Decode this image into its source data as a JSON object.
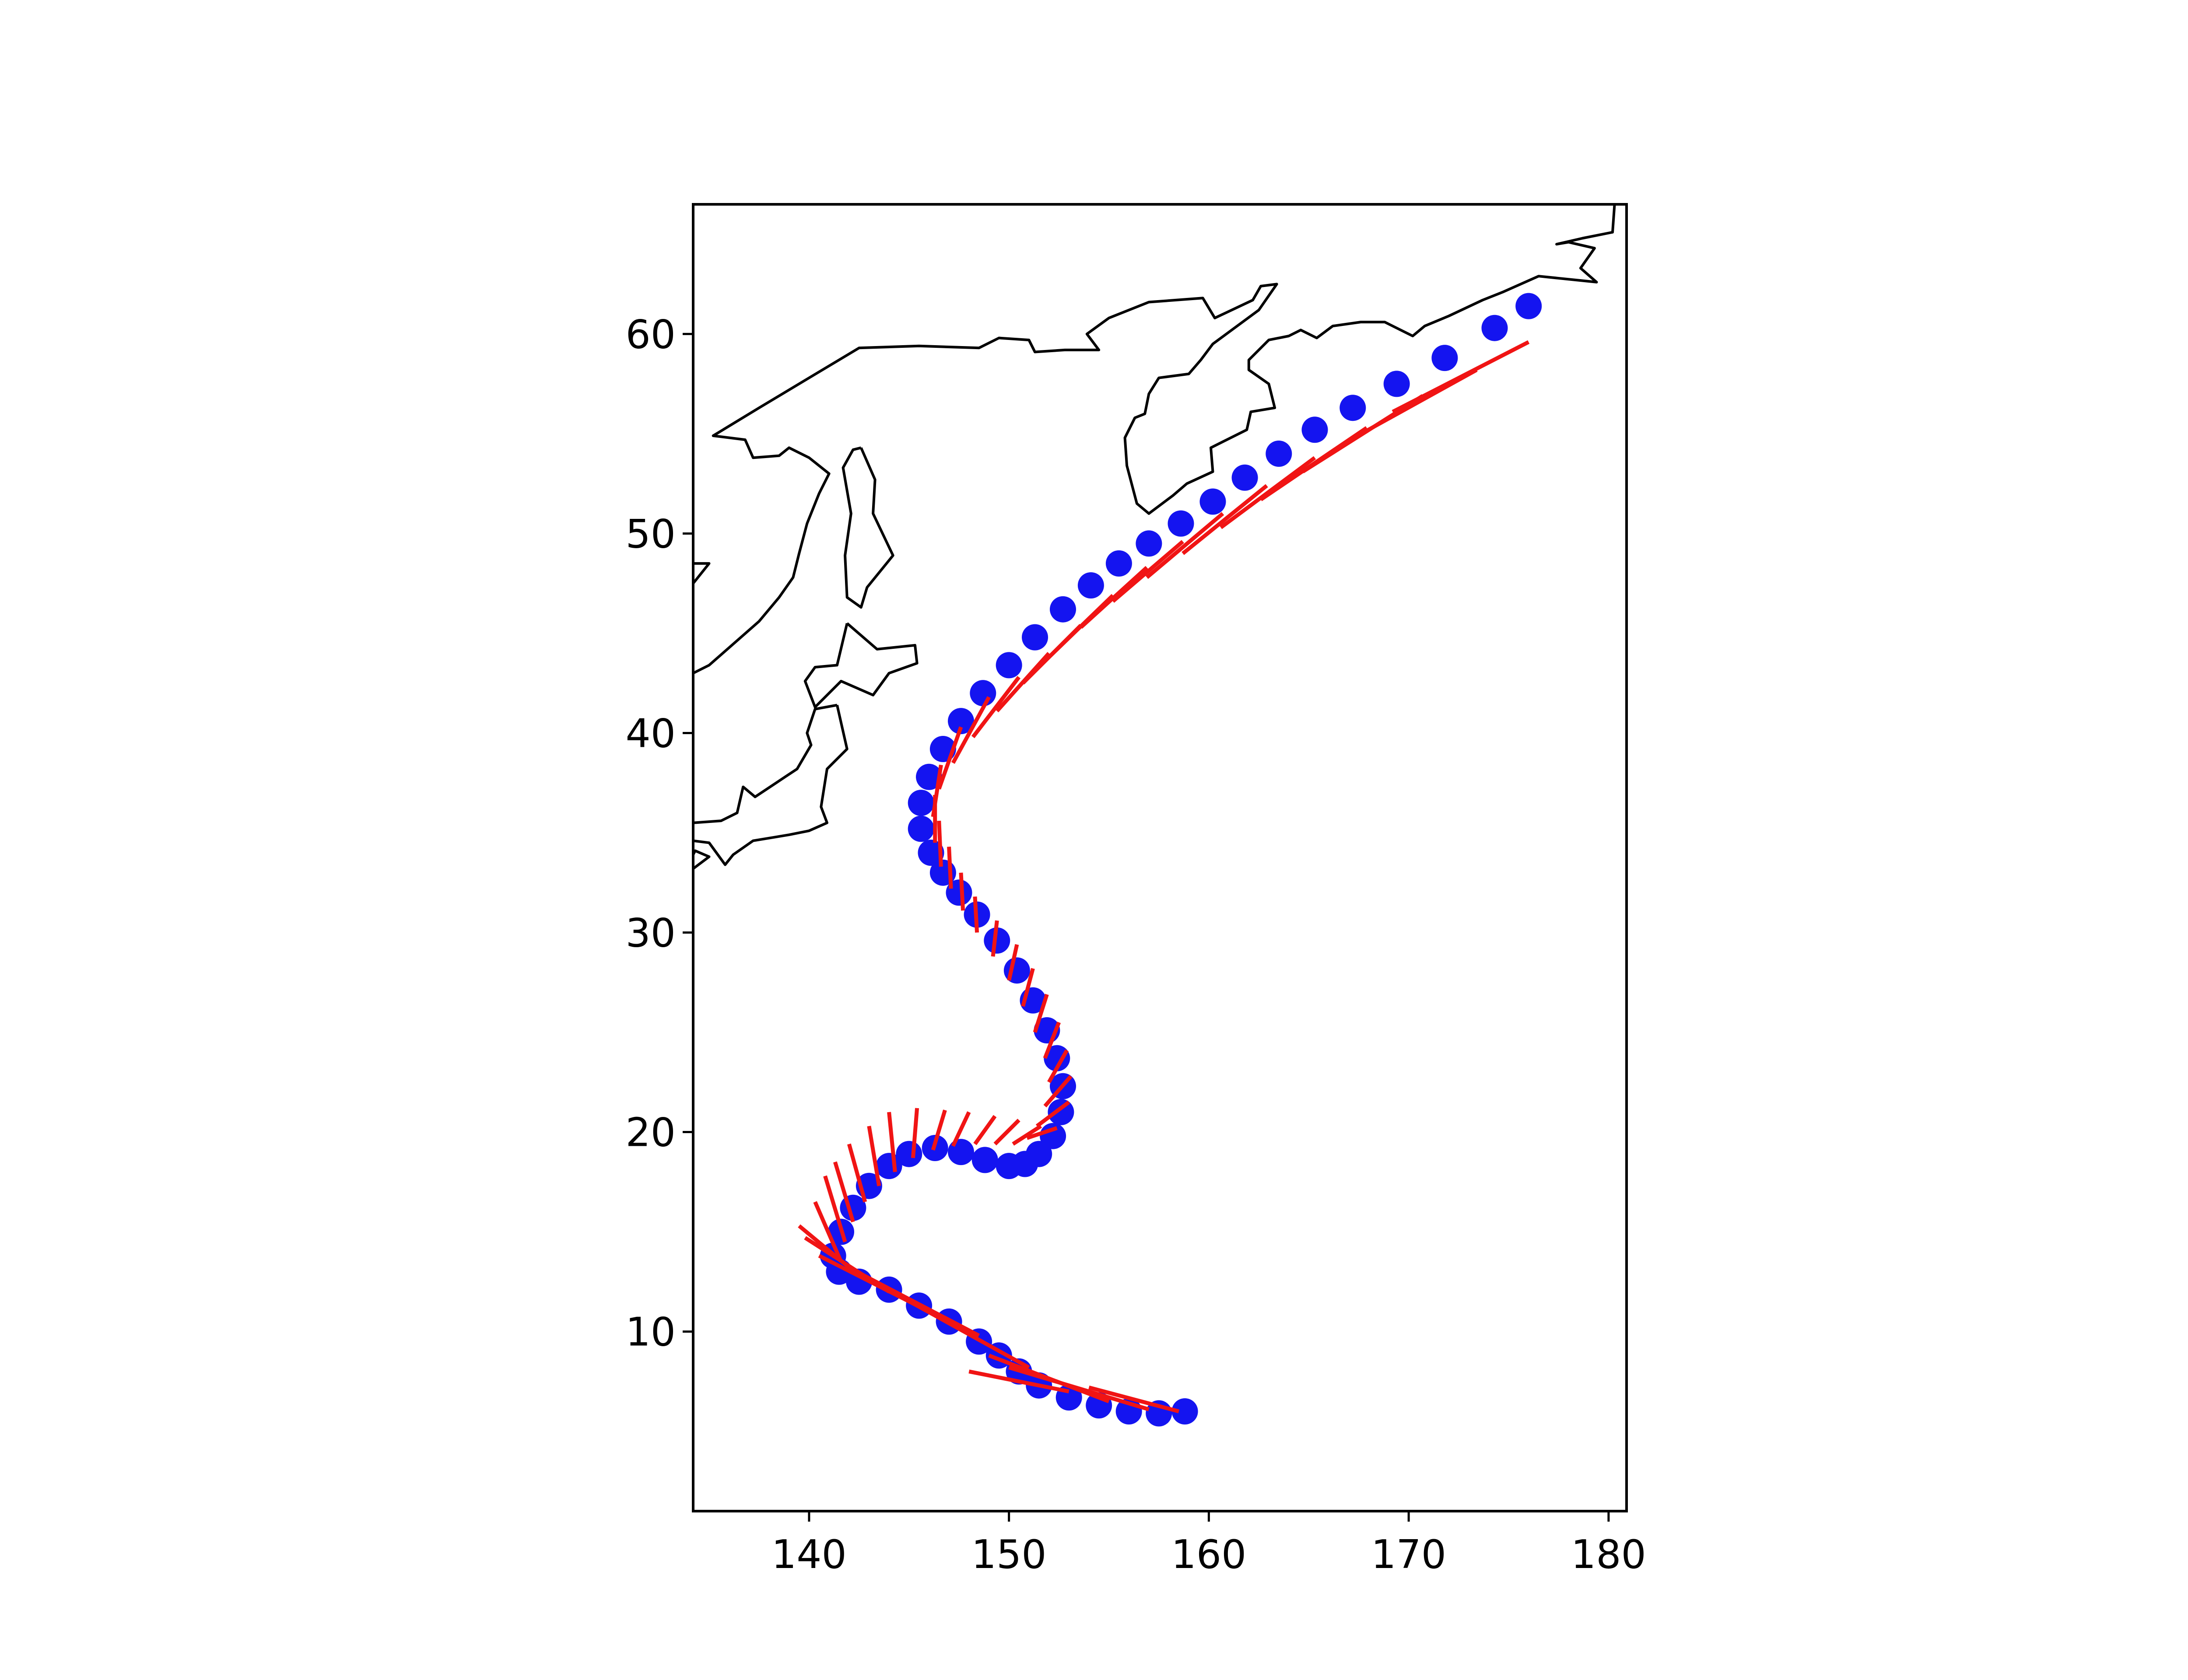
{
  "chart_data": {
    "type": "scatter",
    "title": "",
    "xlabel": "",
    "ylabel": "",
    "xlim": [
      134.2,
      180.9
    ],
    "ylim": [
      1.0,
      66.5
    ],
    "xticks": [
      140,
      150,
      160,
      170,
      180
    ],
    "yticks": [
      10,
      20,
      30,
      40,
      50,
      60
    ],
    "xtick_labels": [
      "140",
      "150",
      "160",
      "170",
      "180"
    ],
    "ytick_labels": [
      "10",
      "20",
      "30",
      "40",
      "50",
      "60"
    ],
    "grid": false,
    "legend": "none",
    "colors": {
      "track": "#1414f0",
      "vectors": "#f01414",
      "coastline": "#000000"
    },
    "series": [
      {
        "kind": "track-points",
        "color": "#1414f0",
        "points": [
          [
            158.8,
            6.0
          ],
          [
            157.5,
            5.9
          ],
          [
            156.0,
            6.0
          ],
          [
            154.5,
            6.3
          ],
          [
            153.0,
            6.7
          ],
          [
            151.5,
            7.3
          ],
          [
            150.5,
            8.0
          ],
          [
            149.5,
            8.8
          ],
          [
            148.5,
            9.5
          ],
          [
            147.0,
            10.5
          ],
          [
            145.5,
            11.3
          ],
          [
            144.0,
            12.1
          ],
          [
            142.5,
            12.5
          ],
          [
            141.5,
            13.0
          ],
          [
            141.2,
            13.8
          ],
          [
            141.6,
            15.0
          ],
          [
            142.2,
            16.2
          ],
          [
            143.0,
            17.3
          ],
          [
            144.0,
            18.3
          ],
          [
            145.0,
            18.9
          ],
          [
            146.3,
            19.2
          ],
          [
            147.6,
            19.0
          ],
          [
            148.8,
            18.6
          ],
          [
            150.0,
            18.3
          ],
          [
            150.8,
            18.4
          ],
          [
            151.5,
            18.9
          ],
          [
            152.2,
            19.8
          ],
          [
            152.6,
            21.0
          ],
          [
            152.7,
            22.3
          ],
          [
            152.4,
            23.7
          ],
          [
            151.9,
            25.1
          ],
          [
            151.2,
            26.6
          ],
          [
            150.4,
            28.1
          ],
          [
            149.4,
            29.6
          ],
          [
            148.4,
            30.9
          ],
          [
            147.5,
            32.0
          ],
          [
            146.7,
            33.0
          ],
          [
            146.1,
            34.0
          ],
          [
            145.6,
            35.2
          ],
          [
            145.6,
            36.5
          ],
          [
            146.0,
            37.8
          ],
          [
            146.7,
            39.2
          ],
          [
            147.6,
            40.6
          ],
          [
            148.7,
            42.0
          ],
          [
            150.0,
            43.4
          ],
          [
            151.3,
            44.8
          ],
          [
            152.7,
            46.2
          ],
          [
            154.1,
            47.4
          ],
          [
            155.5,
            48.5
          ],
          [
            157.0,
            49.5
          ],
          [
            158.6,
            50.5
          ],
          [
            160.2,
            51.6
          ],
          [
            161.8,
            52.8
          ],
          [
            163.5,
            54.0
          ],
          [
            165.3,
            55.2
          ],
          [
            167.2,
            56.3
          ],
          [
            169.4,
            57.5
          ],
          [
            171.8,
            58.8
          ],
          [
            174.3,
            60.3
          ],
          [
            176.0,
            61.4
          ]
        ]
      },
      {
        "kind": "vectors",
        "color": "#f01414",
        "segments": [
          [
            158.5,
            6.0,
            154.0,
            7.2
          ],
          [
            157.0,
            6.1,
            150.0,
            8.2
          ],
          [
            155.0,
            6.5,
            149.0,
            8.8
          ],
          [
            153.0,
            7.0,
            148.0,
            8.0
          ],
          [
            151.0,
            8.2,
            144.5,
            11.8
          ],
          [
            148.5,
            9.8,
            142.0,
            13.2
          ],
          [
            146.0,
            11.0,
            140.5,
            13.8
          ],
          [
            144.0,
            12.0,
            139.8,
            14.7
          ],
          [
            142.5,
            12.8,
            139.5,
            15.3
          ],
          [
            141.6,
            13.5,
            140.3,
            16.5
          ],
          [
            141.8,
            14.5,
            140.8,
            17.8
          ],
          [
            142.2,
            15.5,
            141.3,
            18.5
          ],
          [
            142.8,
            16.5,
            142.0,
            19.4
          ],
          [
            143.5,
            17.3,
            143.0,
            20.3
          ],
          [
            144.3,
            18.0,
            144.0,
            21.0
          ],
          [
            145.2,
            18.7,
            145.4,
            21.2
          ],
          [
            146.2,
            19.1,
            146.8,
            21.1
          ],
          [
            147.2,
            19.3,
            148.0,
            21.0
          ],
          [
            148.3,
            19.4,
            149.3,
            20.8
          ],
          [
            149.3,
            19.4,
            150.5,
            20.6
          ],
          [
            150.2,
            19.4,
            151.6,
            20.3
          ],
          [
            150.9,
            19.7,
            152.4,
            20.2
          ],
          [
            151.4,
            20.3,
            153.0,
            21.5
          ],
          [
            151.8,
            21.3,
            153.1,
            22.8
          ],
          [
            152.0,
            22.5,
            152.9,
            24.1
          ],
          [
            151.8,
            23.7,
            152.5,
            25.5
          ],
          [
            151.3,
            25.0,
            151.9,
            26.9
          ],
          [
            150.7,
            26.3,
            151.2,
            28.2
          ],
          [
            150.0,
            27.6,
            150.4,
            29.4
          ],
          [
            149.2,
            28.8,
            149.4,
            30.6
          ],
          [
            148.4,
            30.0,
            148.3,
            31.8
          ],
          [
            147.7,
            31.1,
            147.6,
            33.0
          ],
          [
            147.1,
            32.2,
            147.0,
            34.3
          ],
          [
            146.6,
            33.3,
            146.5,
            35.6
          ],
          [
            146.3,
            34.5,
            146.3,
            36.9
          ],
          [
            146.2,
            35.8,
            146.6,
            38.4
          ],
          [
            146.5,
            37.2,
            147.6,
            40.3
          ],
          [
            147.2,
            38.5,
            149.0,
            41.8
          ],
          [
            148.2,
            39.8,
            150.5,
            42.8
          ],
          [
            149.4,
            41.1,
            152.0,
            44.0
          ],
          [
            150.7,
            42.5,
            153.6,
            45.4
          ],
          [
            152.1,
            43.9,
            155.2,
            46.9
          ],
          [
            153.6,
            45.3,
            156.9,
            48.3
          ],
          [
            155.2,
            46.6,
            158.7,
            49.6
          ],
          [
            156.9,
            47.8,
            160.7,
            51.0
          ],
          [
            158.7,
            49.0,
            162.9,
            52.4
          ],
          [
            160.6,
            50.3,
            165.3,
            53.8
          ],
          [
            162.6,
            51.7,
            167.9,
            55.3
          ],
          [
            164.7,
            53.1,
            170.7,
            56.9
          ],
          [
            166.9,
            54.6,
            173.4,
            58.2
          ],
          [
            169.2,
            56.1,
            176.0,
            59.6
          ]
        ]
      }
    ],
    "coastlines": [
      [
        [
          134.2,
          48.5
        ],
        [
          135.0,
          48.5
        ],
        [
          134.2,
          47.5
        ]
      ],
      [
        [
          134.2,
          43.0
        ],
        [
          135.0,
          43.4
        ],
        [
          137.5,
          45.6
        ],
        [
          138.5,
          46.8
        ],
        [
          139.2,
          47.8
        ],
        [
          139.5,
          49.0
        ],
        [
          139.9,
          50.5
        ],
        [
          140.5,
          52.0
        ],
        [
          141.0,
          53.0
        ],
        [
          140.0,
          53.8
        ],
        [
          139.0,
          54.3
        ],
        [
          138.5,
          53.9
        ],
        [
          137.2,
          53.8
        ],
        [
          136.8,
          54.7
        ],
        [
          135.2,
          54.9
        ],
        [
          137.5,
          56.3
        ],
        [
          140.0,
          57.8
        ],
        [
          142.5,
          59.3
        ],
        [
          145.5,
          59.4
        ],
        [
          148.5,
          59.3
        ],
        [
          149.5,
          59.8
        ],
        [
          151.0,
          59.7
        ],
        [
          151.3,
          59.1
        ],
        [
          152.8,
          59.2
        ],
        [
          154.5,
          59.2
        ],
        [
          153.9,
          60.0
        ],
        [
          155.0,
          60.8
        ],
        [
          157.0,
          61.6
        ],
        [
          159.7,
          61.8
        ],
        [
          160.3,
          60.8
        ],
        [
          162.2,
          61.7
        ],
        [
          162.6,
          62.4
        ],
        [
          163.4,
          62.5
        ],
        [
          162.5,
          61.2
        ],
        [
          160.2,
          59.5
        ],
        [
          159.6,
          58.7
        ],
        [
          159.0,
          58.0
        ],
        [
          157.5,
          57.8
        ],
        [
          157.0,
          57.0
        ],
        [
          156.8,
          56.0
        ],
        [
          156.3,
          55.8
        ],
        [
          155.8,
          54.8
        ],
        [
          155.9,
          53.4
        ],
        [
          156.4,
          51.5
        ],
        [
          157.0,
          51.0
        ],
        [
          158.2,
          51.9
        ],
        [
          158.9,
          52.5
        ],
        [
          160.2,
          53.1
        ],
        [
          160.1,
          54.3
        ],
        [
          161.9,
          55.2
        ],
        [
          162.1,
          56.1
        ],
        [
          163.3,
          56.3
        ],
        [
          163.0,
          57.5
        ],
        [
          162.0,
          58.2
        ],
        [
          162.0,
          58.7
        ],
        [
          163.0,
          59.7
        ],
        [
          164.0,
          59.9
        ],
        [
          164.6,
          60.2
        ],
        [
          165.4,
          59.8
        ],
        [
          166.2,
          60.4
        ],
        [
          167.6,
          60.6
        ],
        [
          168.8,
          60.6
        ],
        [
          170.2,
          59.9
        ],
        [
          170.8,
          60.4
        ],
        [
          172.0,
          60.9
        ],
        [
          173.7,
          61.7
        ],
        [
          174.7,
          62.1
        ],
        [
          176.5,
          62.9
        ],
        [
          179.4,
          62.6
        ],
        [
          178.6,
          63.3
        ],
        [
          179.3,
          64.3
        ],
        [
          178.0,
          64.6
        ],
        [
          177.4,
          64.5
        ],
        [
          178.7,
          64.8
        ],
        [
          180.2,
          65.1
        ],
        [
          180.3,
          66.5
        ]
      ],
      [
        [
          142.6,
          54.3
        ],
        [
          143.3,
          52.7
        ],
        [
          143.2,
          51.0
        ],
        [
          144.2,
          48.9
        ],
        [
          142.9,
          47.3
        ],
        [
          142.6,
          46.3
        ],
        [
          141.9,
          46.8
        ],
        [
          141.8,
          48.9
        ],
        [
          142.1,
          51.0
        ],
        [
          141.7,
          53.3
        ],
        [
          142.2,
          54.2
        ],
        [
          142.6,
          54.3
        ]
      ],
      [
        [
          141.9,
          45.5
        ],
        [
          143.4,
          44.2
        ],
        [
          145.3,
          44.4
        ],
        [
          145.4,
          43.5
        ],
        [
          144.0,
          43.0
        ],
        [
          143.2,
          41.9
        ],
        [
          141.6,
          42.6
        ],
        [
          140.3,
          41.3
        ],
        [
          139.8,
          42.6
        ],
        [
          140.3,
          43.3
        ],
        [
          141.4,
          43.4
        ],
        [
          141.9,
          45.5
        ]
      ],
      [
        [
          141.4,
          41.4
        ],
        [
          141.9,
          39.2
        ],
        [
          140.9,
          38.2
        ],
        [
          140.6,
          36.3
        ],
        [
          140.9,
          35.5
        ],
        [
          140.0,
          35.1
        ],
        [
          139.0,
          34.9
        ],
        [
          137.2,
          34.6
        ],
        [
          136.2,
          33.9
        ],
        [
          135.8,
          33.4
        ],
        [
          135.0,
          34.5
        ],
        [
          134.2,
          34.6
        ]
      ],
      [
        [
          141.4,
          41.4
        ],
        [
          140.3,
          41.2
        ],
        [
          139.9,
          40.0
        ],
        [
          140.1,
          39.4
        ],
        [
          139.4,
          38.2
        ],
        [
          138.8,
          37.8
        ],
        [
          137.3,
          36.8
        ],
        [
          136.7,
          37.3
        ],
        [
          136.4,
          36.0
        ],
        [
          135.6,
          35.6
        ],
        [
          134.2,
          35.5
        ]
      ],
      [
        [
          134.2,
          33.2
        ],
        [
          135.0,
          33.8
        ],
        [
          134.3,
          34.1
        ],
        [
          134.2,
          33.9
        ]
      ]
    ]
  }
}
